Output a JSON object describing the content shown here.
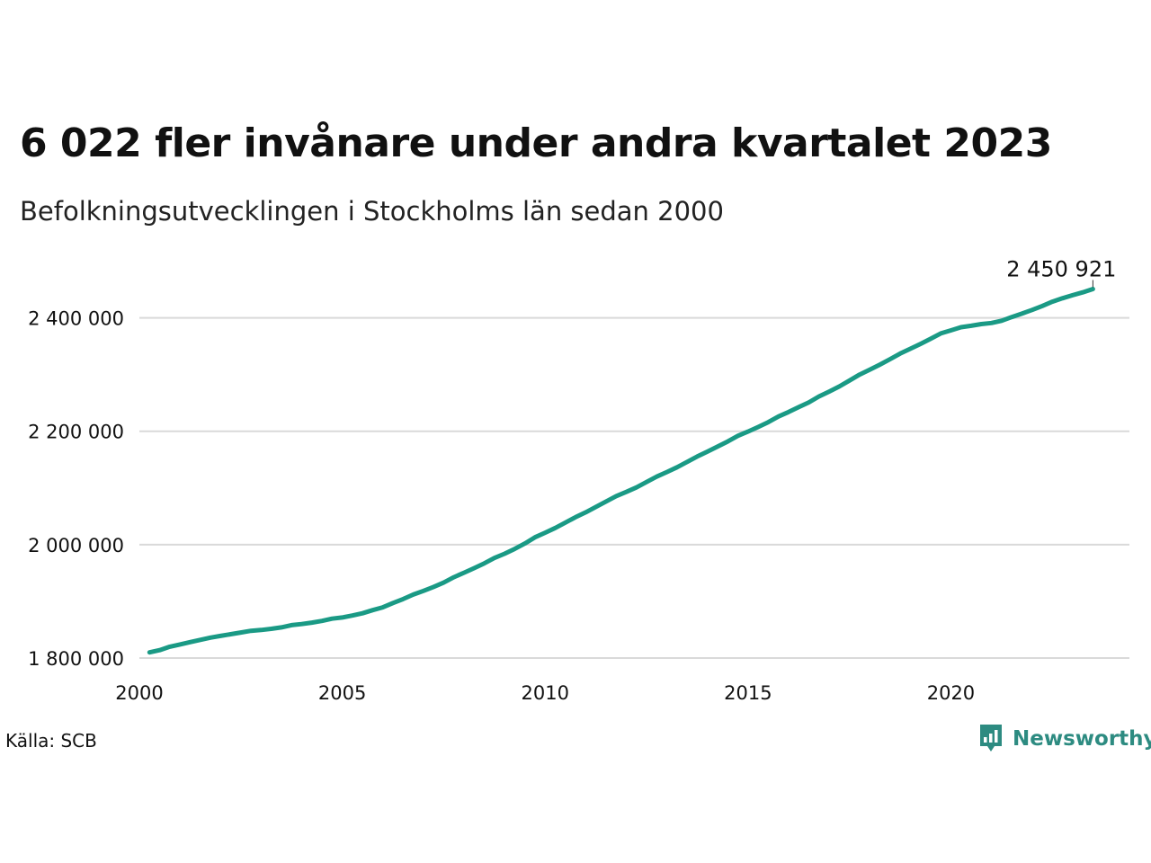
{
  "title": "6 022 fler invånare under andra kvartalet 2023",
  "subtitle": "Befolkningsutvecklingen i Stockholms län sedan 2000",
  "source": "Källa: SCB",
  "brand": {
    "name": "Newsworthy",
    "icon": "newsworthy-logo-icon",
    "color": "#2d8b81"
  },
  "colors": {
    "line": "#1a9a85",
    "grid": "#d9d9d9",
    "text": "#111111"
  },
  "chart_data": {
    "type": "line",
    "title": "6 022 fler invånare under andra kvartalet 2023",
    "subtitle": "Befolkningsutvecklingen i Stockholms län sedan 2000",
    "xlabel": "",
    "ylabel": "",
    "xlim": [
      2000,
      2024.4
    ],
    "ylim": [
      1800000,
      2485000
    ],
    "grid": true,
    "x_ticks": [
      2000,
      2005,
      2010,
      2015,
      2020
    ],
    "x_tick_labels": [
      "2000",
      "2005",
      "2010",
      "2015",
      "2020"
    ],
    "y_ticks": [
      1800000,
      2000000,
      2200000,
      2400000
    ],
    "y_tick_labels": [
      "1 800 000",
      "2 000 000",
      "2 200 000",
      "2 400 000"
    ],
    "last_label": "2 450 921",
    "series": [
      {
        "x": [
          2000.25,
          2000.5,
          2000.75,
          2001.0,
          2001.25,
          2001.5,
          2001.75,
          2002.0,
          2002.25,
          2002.5,
          2002.75,
          2003.0,
          2003.25,
          2003.5,
          2003.75,
          2004.0,
          2004.25,
          2004.5,
          2004.75,
          2005.0,
          2005.25,
          2005.5,
          2005.75,
          2006.0,
          2006.25,
          2006.5,
          2006.75,
          2007.0,
          2007.25,
          2007.5,
          2007.75,
          2008.0,
          2008.25,
          2008.5,
          2008.75,
          2009.0,
          2009.25,
          2009.5,
          2009.75,
          2010.0,
          2010.25,
          2010.5,
          2010.75,
          2011.0,
          2011.25,
          2011.5,
          2011.75,
          2012.0,
          2012.25,
          2012.5,
          2012.75,
          2013.0,
          2013.25,
          2013.5,
          2013.75,
          2014.0,
          2014.25,
          2014.5,
          2014.75,
          2015.0,
          2015.25,
          2015.5,
          2015.75,
          2016.0,
          2016.25,
          2016.5,
          2016.75,
          2017.0,
          2017.25,
          2017.5,
          2017.75,
          2018.0,
          2018.25,
          2018.5,
          2018.75,
          2019.0,
          2019.25,
          2019.5,
          2019.75,
          2020.0,
          2020.25,
          2020.5,
          2020.75,
          2021.0,
          2021.25,
          2021.5,
          2021.75,
          2022.0,
          2022.25,
          2022.5,
          2022.75,
          2023.0,
          2023.25,
          2023.5
        ],
        "values": [
          1810000,
          1814000,
          1820000,
          1824000,
          1828000,
          1832000,
          1836000,
          1839000,
          1842000,
          1845000,
          1848000,
          1849500,
          1851500,
          1854000,
          1858000,
          1860000,
          1862500,
          1865500,
          1869500,
          1871500,
          1875000,
          1879000,
          1884500,
          1889500,
          1897000,
          1904000,
          1912000,
          1918500,
          1925500,
          1933000,
          1942500,
          1950500,
          1958500,
          1967000,
          1976500,
          1984000,
          1992500,
          2002000,
          2013000,
          2021000,
          2029500,
          2039000,
          2048500,
          2057000,
          2066500,
          2076000,
          2085500,
          2093000,
          2101000,
          2110500,
          2120000,
          2128000,
          2136500,
          2146000,
          2155500,
          2164000,
          2173000,
          2182000,
          2192000,
          2199500,
          2207500,
          2216000,
          2226000,
          2234000,
          2242500,
          2251000,
          2261500,
          2270000,
          2279000,
          2289500,
          2300000,
          2308500,
          2317500,
          2327000,
          2337000,
          2345500,
          2354000,
          2363000,
          2372500,
          2378000,
          2383500,
          2386000,
          2389000,
          2391000,
          2395000,
          2401500,
          2407500,
          2414000,
          2421000,
          2428500,
          2434500,
          2440000,
          2445000,
          2450921
        ]
      }
    ]
  }
}
